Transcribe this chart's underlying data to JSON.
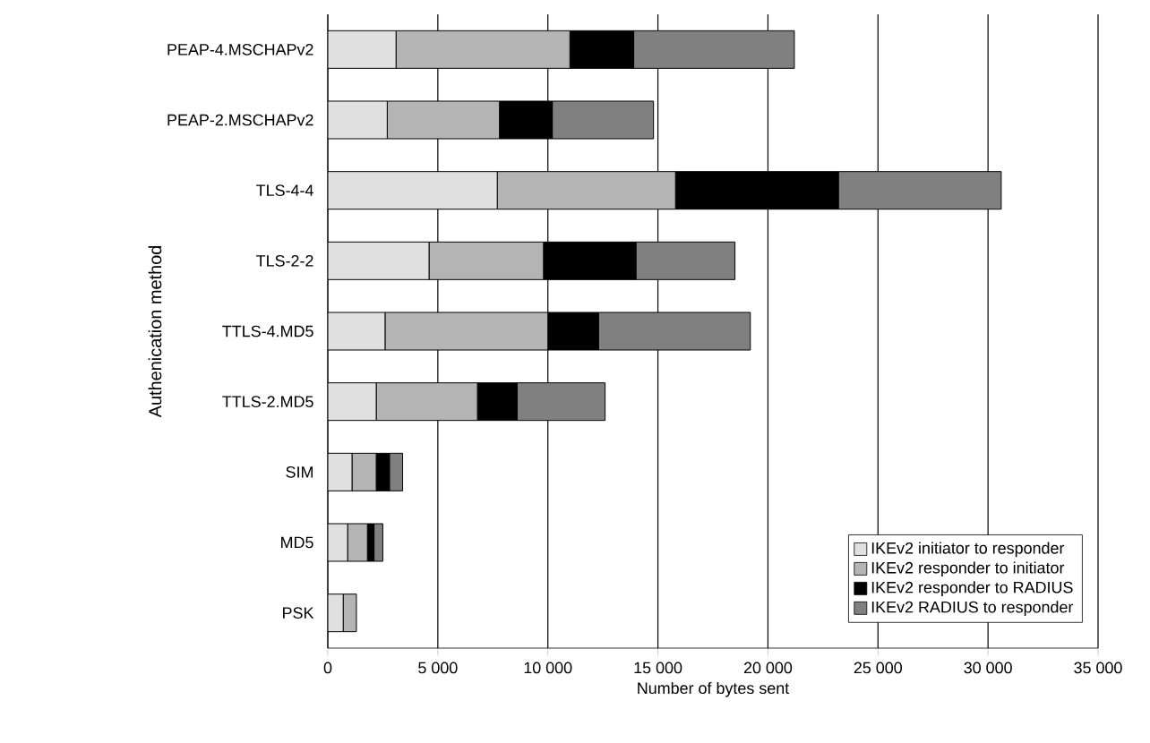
{
  "chart_data": {
    "type": "bar",
    "orientation": "horizontal",
    "stacked": true,
    "xlabel": "Number of bytes sent",
    "ylabel": "Authenication method",
    "categories": [
      "PEAP-4.MSCHAPv2",
      "PEAP-2.MSCHAPv2",
      "TLS-4-4",
      "TLS-2-2",
      "TTLS-4.MD5",
      "TTLS-2.MD5",
      "SIM",
      "MD5",
      "PSK"
    ],
    "series": [
      {
        "name": "IKEv2 initiator to responder",
        "color": "#e0e0e0",
        "values": [
          3100,
          2700,
          7700,
          4600,
          2600,
          2200,
          1100,
          900,
          700
        ]
      },
      {
        "name": "IKEv2 responder to initiator",
        "color": "#b4b4b4",
        "values": [
          7900,
          5100,
          8100,
          5200,
          7400,
          4600,
          1100,
          900,
          600
        ]
      },
      {
        "name": "IKEv2 responder to RADIUS",
        "color": "#000000",
        "values": [
          2900,
          2400,
          7400,
          4200,
          2300,
          1800,
          600,
          300,
          0
        ]
      },
      {
        "name": "IKEv2 RADIUS to responder",
        "color": "#808080",
        "values": [
          7300,
          4600,
          7400,
          4500,
          6900,
          4000,
          600,
          400,
          0
        ]
      }
    ],
    "xlim": [
      0,
      35000
    ],
    "xticks": [
      0,
      {
        "value": 5000,
        "label": "5 000"
      },
      {
        "value": 10000,
        "label": "10 000"
      },
      {
        "value": 15000,
        "label": "15 000"
      },
      {
        "value": 20000,
        "label": "20 000"
      },
      {
        "value": 25000,
        "label": "25 000"
      },
      {
        "value": 30000,
        "label": "30 000"
      },
      {
        "value": 35000,
        "label": "35 000"
      }
    ],
    "grid": "x",
    "legend": "bottom right"
  }
}
